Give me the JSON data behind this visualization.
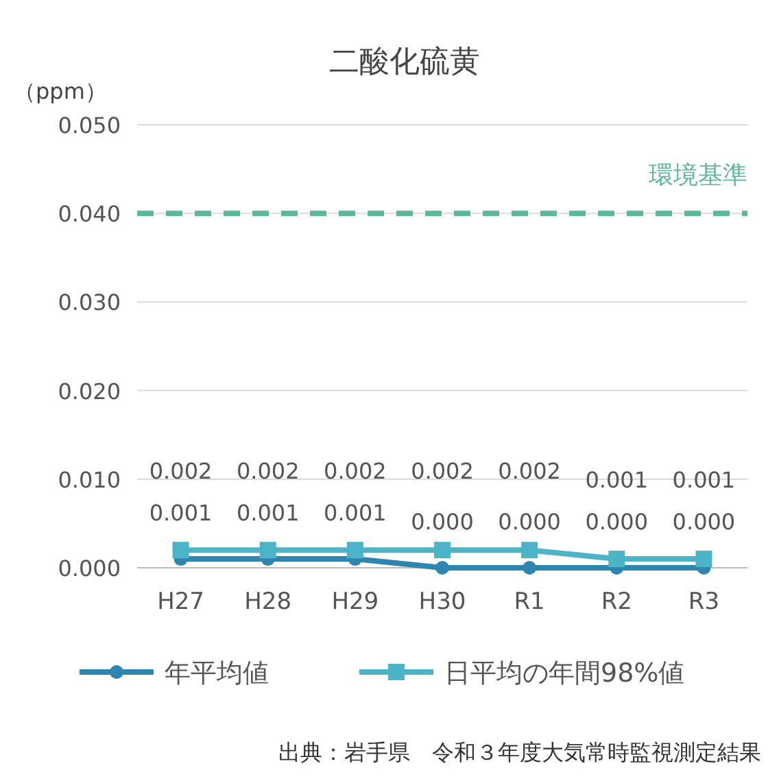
{
  "chart_data": {
    "type": "line",
    "title": "二酸化硫黄",
    "ylabel": "（ppm）",
    "categories": [
      "H27",
      "H28",
      "H29",
      "H30",
      "R1",
      "R2",
      "R3"
    ],
    "series": [
      {
        "name": "年平均値",
        "color": "#2e86b0",
        "marker": "circle",
        "values": [
          0.001,
          0.001,
          0.001,
          0.0,
          0.0,
          0.0,
          0.0
        ],
        "value_labels": [
          "0.001",
          "0.001",
          "0.001",
          "0.000",
          "0.000",
          "0.000",
          "0.000"
        ]
      },
      {
        "name": "日平均の年間98%値",
        "color": "#4db3c6",
        "marker": "square",
        "values": [
          0.002,
          0.002,
          0.002,
          0.002,
          0.002,
          0.001,
          0.001
        ],
        "value_labels": [
          "0.002",
          "0.002",
          "0.002",
          "0.002",
          "0.002",
          "0.001",
          "0.001"
        ]
      }
    ],
    "ylim": [
      0,
      0.05
    ],
    "yticks": [
      {
        "value": 0,
        "label": "0.000"
      },
      {
        "value": 0.01,
        "label": "0.010"
      },
      {
        "value": 0.02,
        "label": "0.020"
      },
      {
        "value": 0.03,
        "label": "0.030"
      },
      {
        "value": 0.04,
        "label": "0.040"
      },
      {
        "value": 0.05,
        "label": "0.050"
      }
    ],
    "grid": "y",
    "legend": "bottom",
    "line_style": "solid",
    "ref_lines": [
      {
        "axis": "y",
        "value": 0.04,
        "label": "環境基準",
        "color": "#5cb898",
        "line_style": "dashed"
      }
    ],
    "annotations": [
      "出典：岩手県　令和３年度大気常時監視測定結果"
    ]
  }
}
